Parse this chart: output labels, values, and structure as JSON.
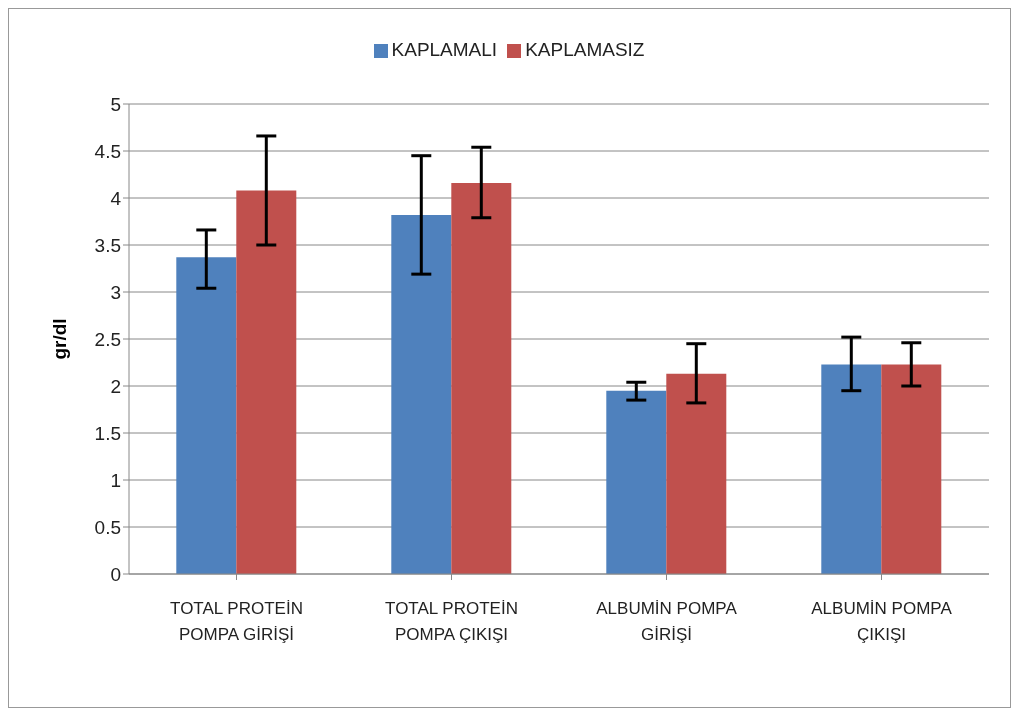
{
  "chart_data": {
    "type": "bar",
    "ylabel": "gr/dl",
    "categories": [
      "TOTAL PROTEİN POMPA GİRİŞİ",
      "TOTAL PROTEİN POMPA ÇIKIŞI",
      "ALBUMİN POMPA GİRİŞİ",
      "ALBUMİN POMPA ÇIKIŞI"
    ],
    "series": [
      {
        "name": "KAPLAMALI",
        "color": "#4f81bd",
        "values": [
          3.37,
          3.82,
          1.95,
          2.23
        ],
        "errors": [
          [
            3.04,
            3.66
          ],
          [
            3.19,
            4.45
          ],
          [
            1.85,
            2.04
          ],
          [
            1.95,
            2.52
          ]
        ]
      },
      {
        "name": "KAPLAMASIZ",
        "color": "#c0504d",
        "values": [
          4.08,
          4.16,
          2.13,
          2.23
        ],
        "errors": [
          [
            3.5,
            4.66
          ],
          [
            3.79,
            4.54
          ],
          [
            1.82,
            2.45
          ],
          [
            2.0,
            2.46
          ]
        ]
      }
    ],
    "ylim": [
      0,
      5
    ],
    "yticks": [
      0,
      0.5,
      1,
      1.5,
      2,
      2.5,
      3,
      3.5,
      4,
      4.5,
      5
    ],
    "grid": "y",
    "legend": "top"
  }
}
